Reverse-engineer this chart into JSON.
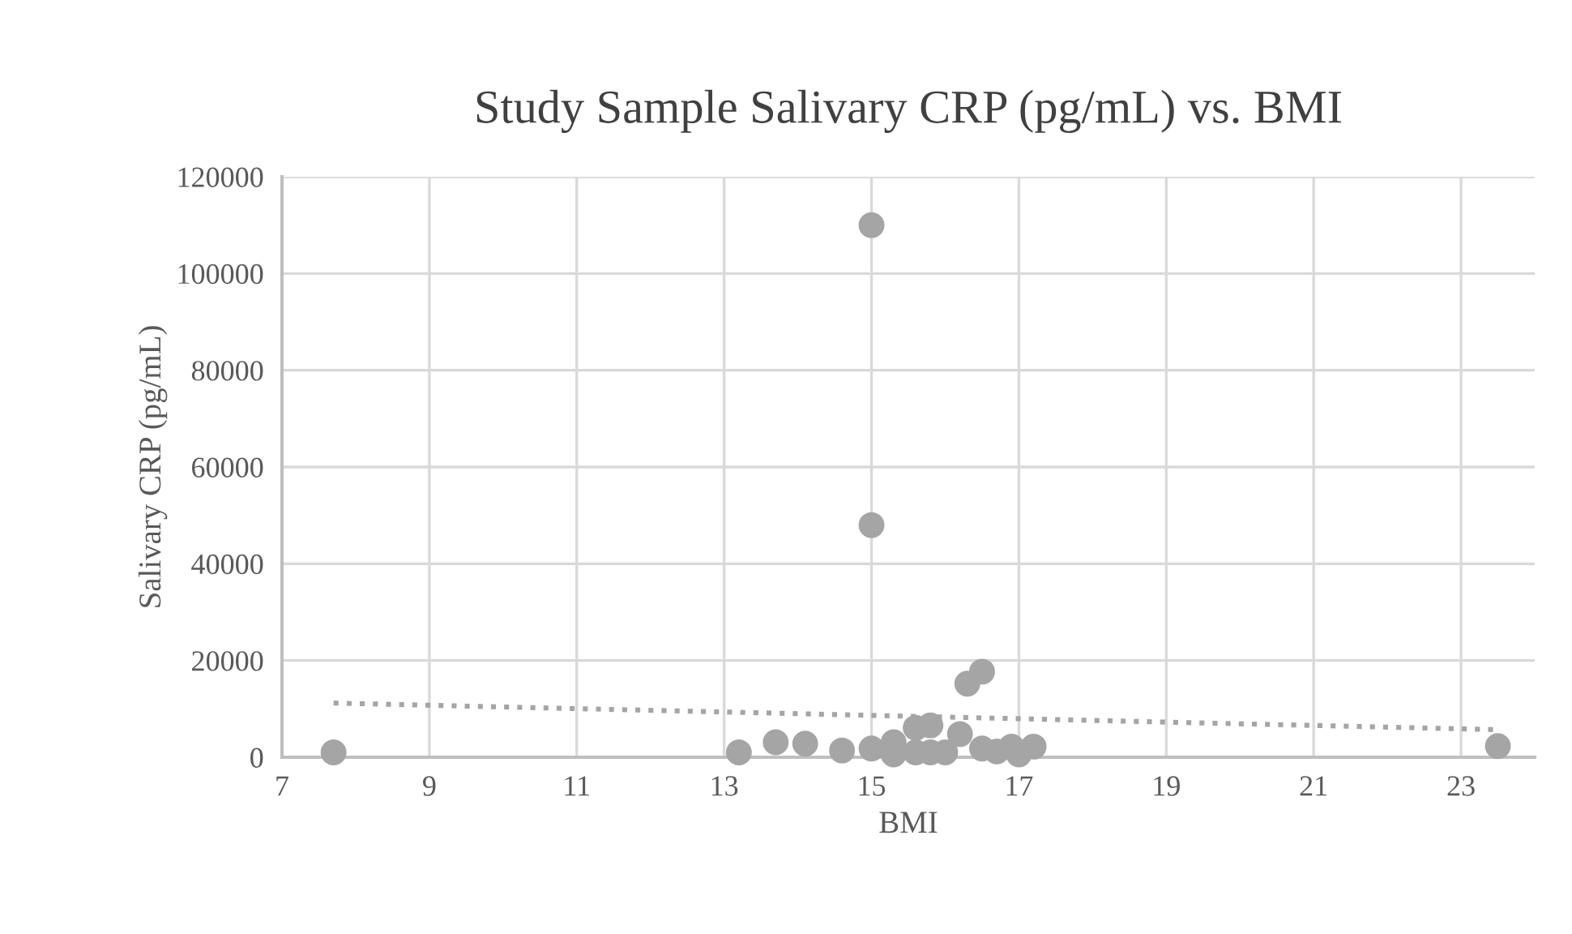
{
  "chart_data": {
    "type": "scatter",
    "title": "Study Sample Salivary CRP (pg/mL) vs. BMI",
    "xlabel": "BMI",
    "ylabel": "Salivary CRP (pg/mL)",
    "xlim": [
      7,
      24
    ],
    "xticks": [
      7,
      9,
      11,
      13,
      15,
      17,
      19,
      21,
      23
    ],
    "ylim": [
      0,
      120000
    ],
    "yticks": [
      0,
      20000,
      40000,
      60000,
      80000,
      100000,
      120000
    ],
    "grid": true,
    "legend": false,
    "marker": "circle",
    "series": [
      {
        "color": "#a5a5a5",
        "x": [
          7.7,
          13.2,
          13.7,
          14.1,
          14.6,
          15.0,
          15.0,
          15.0,
          15.3,
          15.3,
          15.6,
          15.6,
          15.8,
          15.8,
          16.0,
          16.2,
          16.3,
          16.5,
          16.5,
          16.7,
          16.9,
          17.2,
          23.5,
          17.0
        ],
        "values": [
          1000,
          1000,
          3100,
          2800,
          1400,
          1800,
          110000,
          48000,
          600,
          3100,
          1000,
          6100,
          6600,
          1000,
          1000,
          4800,
          15200,
          17700,
          1800,
          1200,
          2200,
          2200,
          2300,
          600
        ]
      },
      {
        "type": "line",
        "color": "#a5a5a5",
        "line_style": "dotted",
        "marker": "none",
        "x": [
          7.7,
          23.5
        ],
        "values": [
          11200,
          5700
        ]
      }
    ]
  }
}
